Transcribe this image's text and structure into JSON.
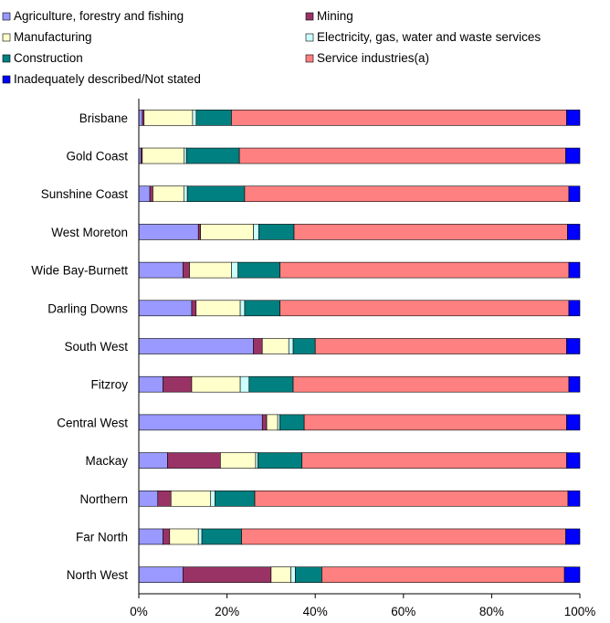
{
  "chart_data": {
    "type": "bar",
    "orientation": "horizontal",
    "stacked": "percent",
    "categories": [
      "Brisbane",
      "Gold Coast",
      "Sunshine Coast",
      "West Moreton",
      "Wide Bay-Burnett",
      "Darling Downs",
      "South West",
      "Fitzroy",
      "Central West",
      "Mackay",
      "Northern",
      "Far North",
      "North West"
    ],
    "series": [
      {
        "name": "Agriculture, forestry and fishing",
        "color": "#9999ff",
        "values": [
          0.8,
          0.5,
          2.5,
          13.5,
          10.0,
          12.0,
          26.0,
          5.5,
          28.0,
          6.5,
          4.3,
          5.5,
          10.0
        ]
      },
      {
        "name": "Mining",
        "color": "#993366",
        "values": [
          0.4,
          0.3,
          0.7,
          0.5,
          1.5,
          1.0,
          2.0,
          6.5,
          1.0,
          12.0,
          3.0,
          1.5,
          20.0
        ]
      },
      {
        "name": "Manufacturing",
        "color": "#ffffcc",
        "values": [
          11.0,
          9.5,
          7.0,
          12.0,
          9.5,
          10.0,
          6.0,
          11.0,
          2.5,
          8.0,
          9.0,
          6.5,
          4.5
        ]
      },
      {
        "name": "Electricity, gas, water and waste services",
        "color": "#ccffff",
        "values": [
          0.8,
          0.5,
          0.8,
          1.2,
          1.5,
          1.0,
          1.0,
          2.0,
          0.5,
          0.5,
          1.0,
          0.8,
          1.0
        ]
      },
      {
        "name": "Construction",
        "color": "#008080",
        "values": [
          8.0,
          12.0,
          13.0,
          8.0,
          9.5,
          8.0,
          5.0,
          10.0,
          5.5,
          10.0,
          9.0,
          9.0,
          6.0
        ]
      },
      {
        "name": "Service industries(a)",
        "color": "#ff8080",
        "values": [
          76.0,
          74.0,
          73.5,
          62.0,
          65.5,
          65.5,
          57.0,
          62.5,
          59.5,
          60.0,
          71.0,
          73.5,
          55.0
        ]
      },
      {
        "name": "Inadequately described/Not stated",
        "color": "#0000ff",
        "values": [
          3.0,
          3.2,
          2.5,
          2.8,
          2.5,
          2.5,
          3.0,
          2.5,
          3.0,
          3.0,
          2.7,
          3.2,
          3.5
        ]
      }
    ],
    "xlim": [
      0,
      100
    ],
    "x_ticks": [
      "0%",
      "20%",
      "40%",
      "60%",
      "80%",
      "100%"
    ],
    "legend_position": "top",
    "grid": false
  }
}
